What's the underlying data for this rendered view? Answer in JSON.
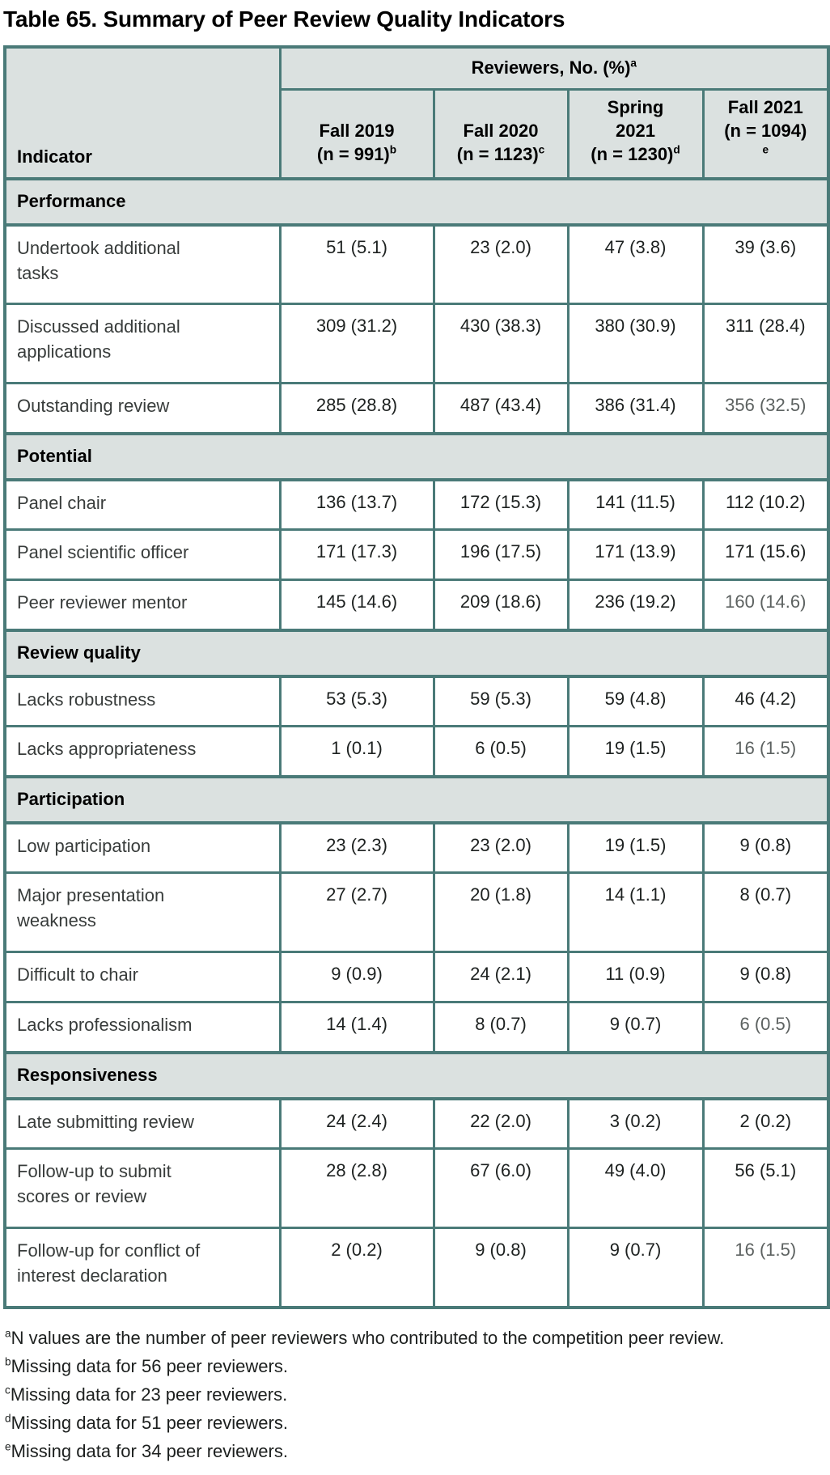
{
  "title": "Table 65. Summary of Peer Review Quality Indicators",
  "colors": {
    "border": "#4a7a78",
    "header_bg": "#dbe1e0",
    "text": "#1d2120",
    "muted_value": "#5d6261"
  },
  "table": {
    "indicator_header": "Indicator",
    "span_header": {
      "text": "Reviewers, No. (%)",
      "sup": "a"
    },
    "columns": [
      {
        "lines": [
          "Fall 2019",
          "(n = 991)"
        ],
        "sup": "b",
        "sup_own_line": false
      },
      {
        "lines": [
          "Fall 2020",
          "(n = 1123)"
        ],
        "sup": "c",
        "sup_own_line": false
      },
      {
        "lines": [
          "Spring",
          "2021",
          "(n = 1230)"
        ],
        "sup": "d",
        "sup_own_line": false
      },
      {
        "lines": [
          "Fall 2021",
          "(n = 1094)"
        ],
        "sup": "e",
        "sup_own_line": true
      }
    ],
    "sections": [
      {
        "label": "Performance",
        "rows": [
          {
            "indicator_lines": [
              "Undertook additional",
              "tasks"
            ],
            "values": [
              "51 (5.1)",
              "23 (2.0)",
              "47 (3.8)",
              "39 (3.6)"
            ],
            "muted": [
              false,
              false,
              false,
              false
            ]
          },
          {
            "indicator_lines": [
              "Discussed additional",
              "applications"
            ],
            "values": [
              "309 (31.2)",
              "430 (38.3)",
              "380 (30.9)",
              "311 (28.4)"
            ],
            "muted": [
              false,
              false,
              false,
              false
            ]
          },
          {
            "indicator_lines": [
              "Outstanding review"
            ],
            "values": [
              "285 (28.8)",
              "487 (43.4)",
              "386 (31.4)",
              "356 (32.5)"
            ],
            "muted": [
              false,
              false,
              false,
              true
            ]
          }
        ]
      },
      {
        "label": "Potential",
        "rows": [
          {
            "indicator_lines": [
              "Panel chair"
            ],
            "values": [
              "136 (13.7)",
              "172 (15.3)",
              "141 (11.5)",
              "112 (10.2)"
            ],
            "muted": [
              false,
              false,
              false,
              false
            ]
          },
          {
            "indicator_lines": [
              "Panel scientific officer"
            ],
            "values": [
              "171 (17.3)",
              "196 (17.5)",
              "171 (13.9)",
              "171 (15.6)"
            ],
            "muted": [
              false,
              false,
              false,
              false
            ]
          },
          {
            "indicator_lines": [
              "Peer reviewer mentor"
            ],
            "values": [
              "145 (14.6)",
              "209 (18.6)",
              "236 (19.2)",
              "160 (14.6)"
            ],
            "muted": [
              false,
              false,
              false,
              true
            ]
          }
        ]
      },
      {
        "label": "Review quality",
        "rows": [
          {
            "indicator_lines": [
              "Lacks robustness"
            ],
            "values": [
              "53 (5.3)",
              "59 (5.3)",
              "59 (4.8)",
              "46 (4.2)"
            ],
            "muted": [
              false,
              false,
              false,
              false
            ]
          },
          {
            "indicator_lines": [
              "Lacks appropriateness"
            ],
            "values": [
              "1 (0.1)",
              "6 (0.5)",
              "19 (1.5)",
              "16 (1.5)"
            ],
            "muted": [
              false,
              false,
              false,
              true
            ]
          }
        ]
      },
      {
        "label": "Participation",
        "rows": [
          {
            "indicator_lines": [
              "Low participation"
            ],
            "values": [
              "23 (2.3)",
              "23 (2.0)",
              "19 (1.5)",
              "9 (0.8)"
            ],
            "muted": [
              false,
              false,
              false,
              false
            ]
          },
          {
            "indicator_lines": [
              "Major presentation",
              "weakness"
            ],
            "values": [
              "27 (2.7)",
              "20 (1.8)",
              "14 (1.1)",
              "8 (0.7)"
            ],
            "muted": [
              false,
              false,
              false,
              false
            ]
          },
          {
            "indicator_lines": [
              "Difficult to chair"
            ],
            "values": [
              "9 (0.9)",
              "24 (2.1)",
              "11 (0.9)",
              "9 (0.8)"
            ],
            "muted": [
              false,
              false,
              false,
              false
            ]
          },
          {
            "indicator_lines": [
              "Lacks professionalism"
            ],
            "values": [
              "14 (1.4)",
              "8 (0.7)",
              "9 (0.7)",
              "6 (0.5)"
            ],
            "muted": [
              false,
              false,
              false,
              true
            ]
          }
        ]
      },
      {
        "label": "Responsiveness",
        "rows": [
          {
            "indicator_lines": [
              "Late submitting review"
            ],
            "values": [
              "24 (2.4)",
              "22 (2.0)",
              "3 (0.2)",
              "2 (0.2)"
            ],
            "muted": [
              false,
              false,
              false,
              false
            ]
          },
          {
            "indicator_lines": [
              "Follow-up to submit",
              "scores or review"
            ],
            "values": [
              "28 (2.8)",
              "67 (6.0)",
              "49 (4.0)",
              "56 (5.1)"
            ],
            "muted": [
              false,
              false,
              false,
              false
            ]
          },
          {
            "indicator_lines": [
              "Follow-up for conflict of",
              "interest declaration"
            ],
            "values": [
              "2 (0.2)",
              "9 (0.8)",
              "9 (0.7)",
              "16 (1.5)"
            ],
            "muted": [
              false,
              false,
              false,
              true
            ]
          }
        ]
      }
    ]
  },
  "footnotes": [
    {
      "sup": "a",
      "text": "N values are the number of peer reviewers who contributed to the competition peer review."
    },
    {
      "sup": "b",
      "text": "Missing data for 56 peer reviewers."
    },
    {
      "sup": "c",
      "text": "Missing data for 23 peer reviewers."
    },
    {
      "sup": "d",
      "text": "Missing data for 51 peer reviewers."
    },
    {
      "sup": "e",
      "text": "Missing data for 34 peer reviewers."
    }
  ]
}
